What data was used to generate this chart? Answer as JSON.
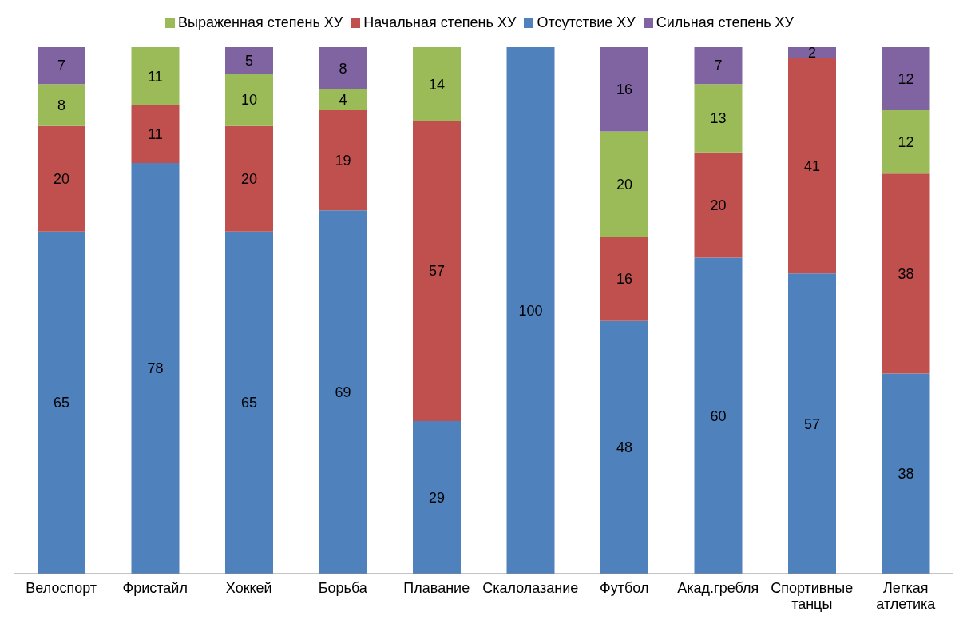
{
  "chart_data": {
    "type": "bar",
    "stacked": true,
    "data_labels": true,
    "legend": "top",
    "grid": false,
    "categories": [
      "Велоспорт",
      "Фристайл",
      "Хоккей",
      "Борьба",
      "Плавание",
      "Скалолазание",
      "Футбол",
      "Акад.гребля",
      "Спортивные танцы",
      "Легкая атлетика"
    ],
    "series": [
      {
        "name": "Отсутствие ХУ",
        "color": "#4f81bd",
        "values": [
          65,
          78,
          65,
          69,
          29,
          100,
          48,
          60,
          57,
          38
        ]
      },
      {
        "name": "Начальная степень ХУ",
        "color": "#c0504d",
        "values": [
          20,
          11,
          20,
          19,
          57,
          null,
          16,
          20,
          41,
          38
        ]
      },
      {
        "name": "Выраженная степень ХУ",
        "color": "#9bbb59",
        "values": [
          8,
          11,
          10,
          4,
          14,
          null,
          20,
          13,
          null,
          12
        ]
      },
      {
        "name": "Сильная степень ХУ",
        "color": "#8064a2",
        "values": [
          7,
          null,
          5,
          8,
          null,
          null,
          16,
          7,
          2,
          12
        ]
      }
    ]
  }
}
